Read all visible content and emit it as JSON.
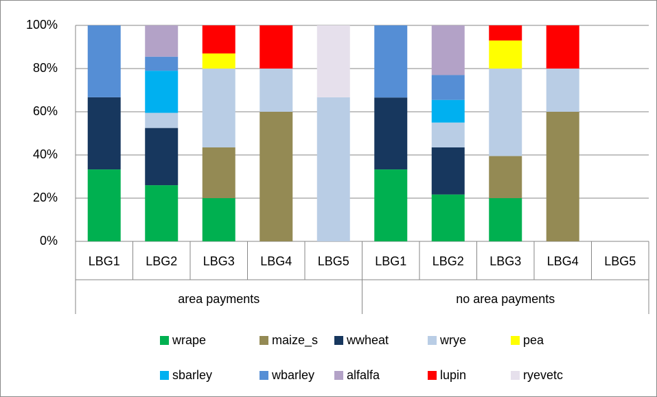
{
  "chart_data": {
    "type": "stacked_bar",
    "categories": [
      "LBG1",
      "LBG2",
      "LBG3",
      "LBG4",
      "LBG5",
      "LBG1",
      "LBG2",
      "LBG3",
      "LBG4",
      "LBG5"
    ],
    "groups": [
      "area payments",
      "no area payments"
    ],
    "series": [
      {
        "name": "wrape",
        "color": "#00b050",
        "values": [
          33.3,
          26,
          20,
          0,
          0,
          33.3,
          21.7,
          20,
          0,
          0
        ]
      },
      {
        "name": "maize_s",
        "color": "#948a54",
        "values": [
          0,
          0,
          23.5,
          60,
          0,
          0,
          0,
          19.5,
          60,
          0
        ]
      },
      {
        "name": "wwheat",
        "color": "#17375e",
        "values": [
          33.4,
          26.5,
          0,
          0,
          0,
          33.3,
          21.8,
          0,
          0,
          0
        ]
      },
      {
        "name": "wrye",
        "color": "#b9cde5",
        "values": [
          0,
          7,
          36.5,
          20,
          66.7,
          0,
          11.5,
          40.5,
          20,
          0
        ]
      },
      {
        "name": "pea",
        "color": "#ffff00",
        "values": [
          0,
          0,
          7,
          0,
          0,
          0,
          0,
          13,
          0,
          0
        ]
      },
      {
        "name": "sbarley",
        "color": "#00b0f0",
        "values": [
          0,
          19.5,
          0,
          0,
          0,
          0,
          10.5,
          0,
          0,
          0
        ]
      },
      {
        "name": "wbarley",
        "color": "#558ed5",
        "values": [
          33.3,
          6.5,
          0,
          0,
          0,
          33.4,
          11.5,
          0,
          0,
          0
        ]
      },
      {
        "name": "alfalfa",
        "color": "#b3a2c7",
        "values": [
          0,
          14.5,
          0,
          0,
          0,
          0,
          23,
          0,
          0,
          0
        ]
      },
      {
        "name": "lupin",
        "color": "#ff0000",
        "values": [
          0,
          0,
          13,
          20,
          0,
          0,
          0,
          7,
          20,
          0
        ]
      },
      {
        "name": "ryevetc",
        "color": "#e6e0ec",
        "values": [
          0,
          0,
          0,
          0,
          33.3,
          0,
          0,
          0,
          0,
          0
        ]
      }
    ],
    "ylim": [
      0,
      100
    ],
    "yticks": [
      {
        "value": 0,
        "label": "0%"
      },
      {
        "value": 20,
        "label": "20%"
      },
      {
        "value": 40,
        "label": "40%"
      },
      {
        "value": 60,
        "label": "60%"
      },
      {
        "value": 80,
        "label": "80%"
      },
      {
        "value": 100,
        "label": "100%"
      }
    ],
    "grid": true
  }
}
